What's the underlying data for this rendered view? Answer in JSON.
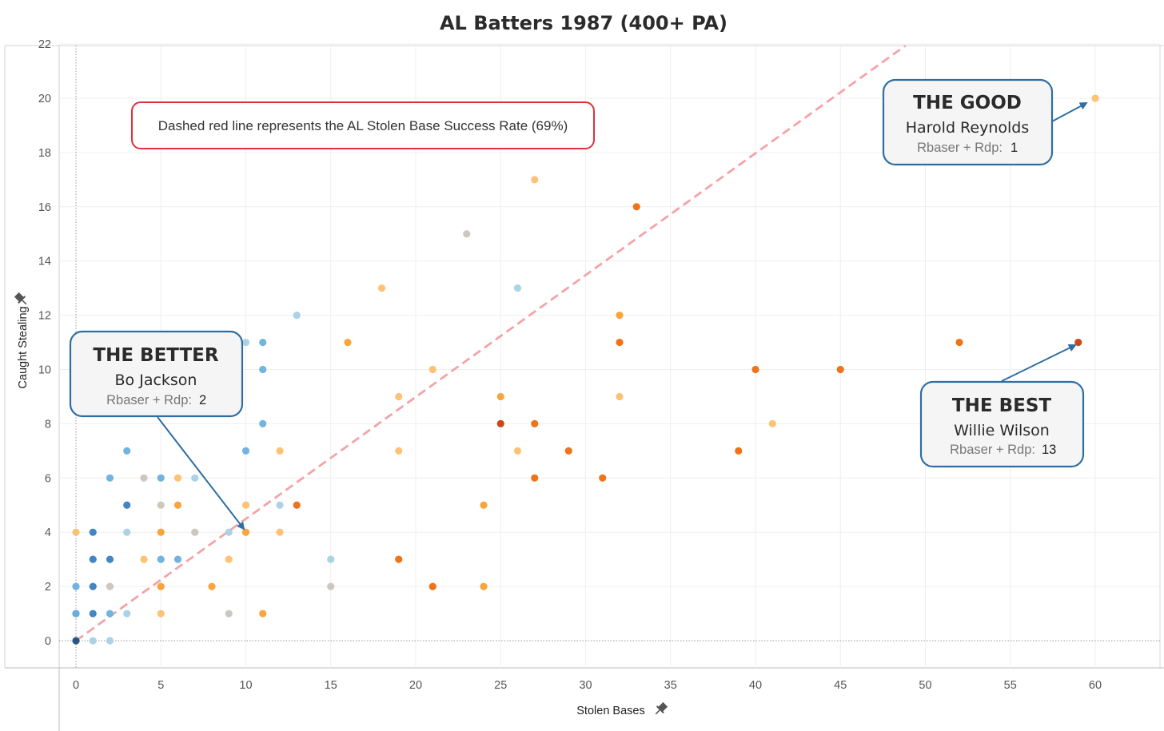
{
  "chart_data": {
    "type": "scatter",
    "title": "AL Batters 1987 (400+ PA)",
    "xlabel": "Stolen Bases",
    "ylabel": "Caught Stealing",
    "xlim": [
      -1,
      64
    ],
    "ylim": [
      -1,
      22.4
    ],
    "x_ticks": [
      0,
      5,
      10,
      15,
      20,
      25,
      30,
      35,
      40,
      45,
      50,
      55,
      60
    ],
    "y_ticks": [
      0,
      2,
      4,
      6,
      8,
      10,
      12,
      14,
      16,
      18,
      20,
      22
    ],
    "grid": true,
    "reference_line": {
      "slope": 0.4493,
      "intercept": 0,
      "color": "#f4a3a8",
      "style": "dashed"
    },
    "series": [
      {
        "color": "#1c4e80",
        "points": [
          [
            0,
            0
          ]
        ]
      },
      {
        "color": "#3a7ebf",
        "points": [
          [
            1,
            4
          ],
          [
            1,
            3
          ],
          [
            1,
            2
          ],
          [
            1,
            1
          ],
          [
            2,
            3
          ],
          [
            3,
            5
          ],
          [
            0,
            1
          ]
        ]
      },
      {
        "color": "#6ab0de",
        "points": [
          [
            2,
            6
          ],
          [
            3,
            7
          ],
          [
            5,
            6
          ],
          [
            2,
            1
          ],
          [
            10,
            7
          ],
          [
            11,
            8
          ],
          [
            11,
            10
          ],
          [
            11,
            11
          ],
          [
            6,
            3
          ],
          [
            5,
            3
          ],
          [
            0,
            2
          ],
          [
            0,
            1
          ]
        ]
      },
      {
        "color": "#a6d0e4",
        "points": [
          [
            1,
            0
          ],
          [
            2,
            0
          ],
          [
            3,
            1
          ],
          [
            3,
            4
          ],
          [
            7,
            6
          ],
          [
            9,
            4
          ],
          [
            10,
            11
          ],
          [
            12,
            5
          ],
          [
            13,
            12
          ],
          [
            15,
            3
          ],
          [
            26,
            13
          ]
        ]
      },
      {
        "color": "#cbc4ba",
        "points": [
          [
            4,
            6
          ],
          [
            5,
            5
          ],
          [
            7,
            4
          ],
          [
            9,
            1
          ],
          [
            2,
            2
          ],
          [
            15,
            2
          ],
          [
            23,
            15
          ]
        ]
      },
      {
        "color": "#fdbf6f",
        "points": [
          [
            0,
            4
          ],
          [
            4,
            3
          ],
          [
            5,
            1
          ],
          [
            6,
            6
          ],
          [
            9,
            3
          ],
          [
            10,
            5
          ],
          [
            12,
            4
          ],
          [
            12,
            7
          ],
          [
            19,
            9
          ],
          [
            19,
            7
          ],
          [
            21,
            10
          ],
          [
            26,
            7
          ],
          [
            32,
            9
          ],
          [
            41,
            8
          ],
          [
            27,
            17
          ],
          [
            18,
            13
          ],
          [
            60,
            20
          ]
        ]
      },
      {
        "color": "#f9a030",
        "points": [
          [
            5,
            4
          ],
          [
            5,
            2
          ],
          [
            6,
            5
          ],
          [
            8,
            2
          ],
          [
            10,
            4
          ],
          [
            11,
            1
          ],
          [
            16,
            11
          ],
          [
            24,
            5
          ],
          [
            24,
            2
          ],
          [
            25,
            9
          ],
          [
            32,
            12
          ]
        ]
      },
      {
        "color": "#ee6b0d",
        "points": [
          [
            13,
            5
          ],
          [
            19,
            3
          ],
          [
            21,
            2
          ],
          [
            27,
            6
          ],
          [
            27,
            8
          ],
          [
            29,
            7
          ],
          [
            31,
            6
          ],
          [
            33,
            16
          ],
          [
            32,
            11
          ],
          [
            39,
            7
          ],
          [
            40,
            10
          ],
          [
            45,
            10
          ],
          [
            52,
            11
          ]
        ]
      },
      {
        "color": "#c73e0b",
        "points": [
          [
            25,
            8
          ],
          [
            59,
            11
          ]
        ]
      }
    ]
  },
  "note": {
    "text": "Dashed red line represents the AL Stolen Base Success Rate (69%)"
  },
  "callouts": {
    "good": {
      "heading": "THE GOOD",
      "name": "Harold Reynolds",
      "stat_label": "Rbaser + Rdp:",
      "stat_value": "1"
    },
    "better": {
      "heading": "THE BETTER",
      "name": "Bo Jackson",
      "stat_label": "Rbaser + Rdp:",
      "stat_value": "2"
    },
    "best": {
      "heading": "THE BEST",
      "name": "Willie Wilson",
      "stat_label": "Rbaser + Rdp:",
      "stat_value": "13"
    }
  },
  "colors": {
    "callout_border": "#2f6ea3",
    "note_border": "#e0303a",
    "arrow": "#2f6ea3"
  }
}
